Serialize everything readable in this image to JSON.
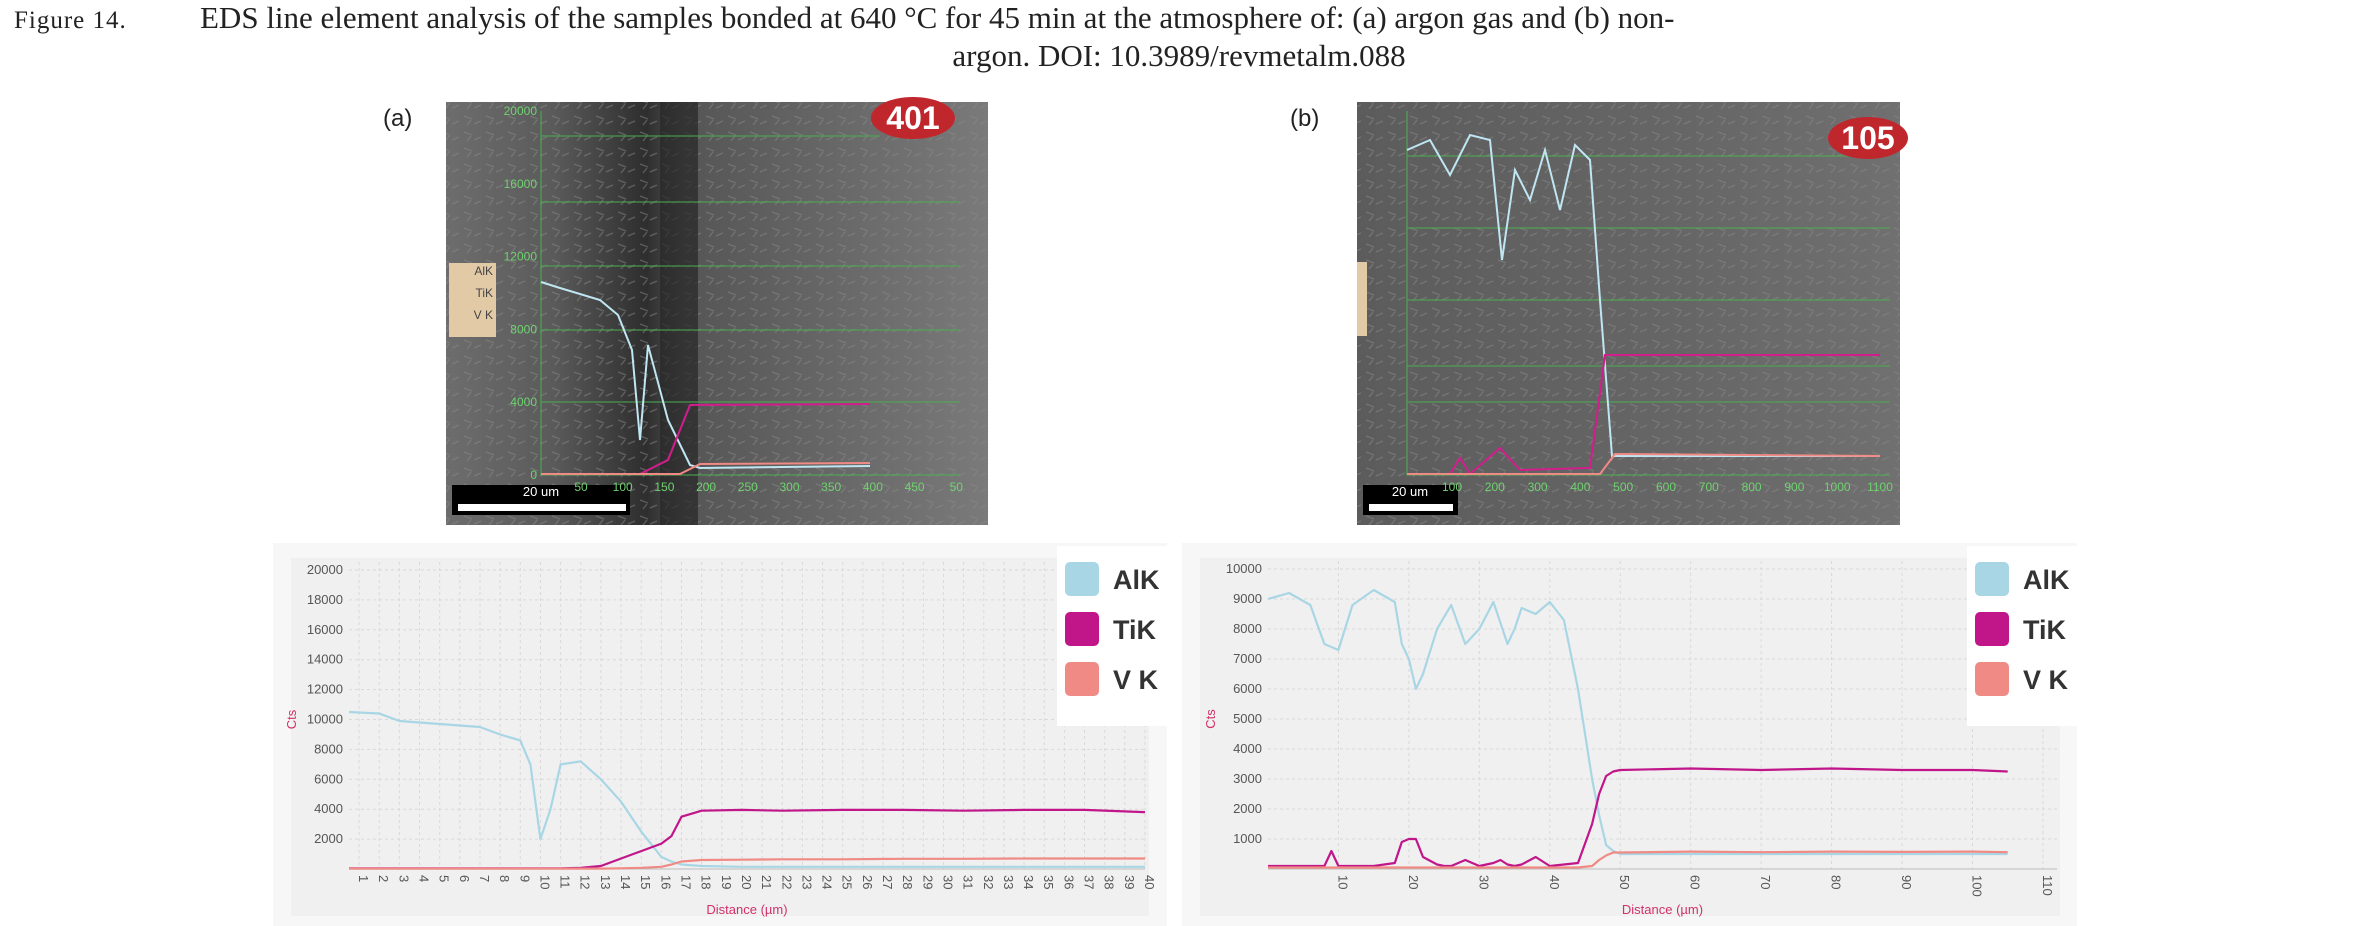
{
  "figure": {
    "caption_label": "Figure 14.",
    "caption_line1": "EDS line element analysis of the samples bonded at 640 °C for 45 min at the atmosphere of: (a) argon gas and (b) non-",
    "caption_line2": "argon. DOI: 10.3989/revmetalm.088",
    "panel_labels": [
      "(a)",
      "(b)"
    ]
  },
  "sem_images": [
    {
      "badge": "401",
      "scale_bar": "20 um",
      "legend": [
        "AlK",
        "TiK",
        "V K"
      ],
      "yticks": [
        "20000",
        "16000",
        "12000",
        "8000",
        "4000",
        "0"
      ],
      "xticks": [
        "50",
        "100",
        "150",
        "200",
        "250",
        "300",
        "350",
        "400",
        "450",
        "50"
      ]
    },
    {
      "badge": "105",
      "scale_bar": "20 um",
      "xticks": [
        "100",
        "200",
        "300",
        "400",
        "500",
        "600",
        "700",
        "800",
        "900",
        "1000",
        "1100"
      ]
    }
  ],
  "chart_data": [
    {
      "type": "line",
      "xlabel": "Distance (µm)",
      "ylabel": "Cts",
      "xlim": [
        0.5,
        40
      ],
      "ylim": [
        0,
        20000
      ],
      "xticks": [
        1,
        2,
        3,
        4,
        5,
        6,
        7,
        8,
        9,
        10,
        11,
        12,
        13,
        14,
        15,
        16,
        17,
        18,
        19,
        20,
        21,
        22,
        23,
        24,
        25,
        26,
        27,
        28,
        29,
        30,
        31,
        32,
        33,
        34,
        35,
        36,
        37,
        38,
        39,
        40
      ],
      "yticks": [
        2000,
        4000,
        6000,
        8000,
        10000,
        12000,
        14000,
        16000,
        18000,
        20000
      ],
      "grid": true,
      "x": [
        0.5,
        2,
        3,
        5,
        7,
        8,
        9,
        9.5,
        10,
        10.5,
        11,
        12,
        13,
        14,
        15,
        16,
        16.5,
        17,
        18,
        20,
        22,
        25,
        28,
        31,
        34,
        37,
        40
      ],
      "series": [
        {
          "name": "AlK",
          "color": "#a9d6e5",
          "values": [
            10500,
            10400,
            9900,
            9700,
            9500,
            9000,
            8600,
            7000,
            2000,
            4000,
            7000,
            7200,
            6000,
            4500,
            2500,
            800,
            500,
            300,
            200,
            150,
            150,
            150,
            150,
            150,
            150,
            150,
            150
          ]
        },
        {
          "name": "TiK",
          "color": "#c0168a",
          "values": [
            50,
            50,
            50,
            50,
            50,
            50,
            50,
            50,
            50,
            50,
            50,
            80,
            200,
            700,
            1200,
            1700,
            2200,
            3500,
            3900,
            3950,
            3900,
            3950,
            3950,
            3900,
            3950,
            3950,
            3800
          ]
        },
        {
          "name": "V K",
          "color": "#f08a84",
          "values": [
            30,
            30,
            30,
            30,
            30,
            30,
            30,
            30,
            30,
            30,
            30,
            30,
            30,
            50,
            80,
            150,
            300,
            500,
            600,
            620,
            650,
            650,
            680,
            680,
            700,
            700,
            700
          ]
        }
      ]
    },
    {
      "type": "line",
      "xlabel": "Distance (µm)",
      "ylabel": "Cts",
      "xlim": [
        0,
        112
      ],
      "ylim": [
        0,
        10000
      ],
      "xticks": [
        10,
        20,
        30,
        40,
        50,
        60,
        70,
        80,
        90,
        100,
        110
      ],
      "yticks": [
        1000,
        2000,
        3000,
        4000,
        5000,
        6000,
        7000,
        8000,
        9000,
        10000
      ],
      "grid": true,
      "x": [
        0,
        3,
        6,
        8,
        9,
        10,
        12,
        15,
        18,
        19,
        20,
        21,
        22,
        24,
        25,
        26,
        28,
        30,
        32,
        33,
        34,
        35,
        36,
        38,
        40,
        42,
        44,
        46,
        47,
        48,
        49,
        50,
        60,
        70,
        80,
        90,
        100,
        105
      ],
      "series": [
        {
          "name": "AlK",
          "color": "#a9d6e5",
          "values": [
            9000,
            9200,
            8800,
            7500,
            7400,
            7300,
            8800,
            9300,
            8900,
            7500,
            7000,
            6000,
            6500,
            8000,
            8400,
            8800,
            7500,
            8000,
            8900,
            8200,
            7500,
            8000,
            8700,
            8500,
            8900,
            8300,
            6000,
            3000,
            1800,
            800,
            600,
            500,
            500,
            500,
            500,
            500,
            500,
            500
          ]
        },
        {
          "name": "TiK",
          "color": "#c0168a",
          "values": [
            100,
            100,
            100,
            100,
            600,
            100,
            100,
            100,
            200,
            900,
            1000,
            1000,
            400,
            150,
            100,
            100,
            300,
            100,
            200,
            300,
            150,
            100,
            150,
            400,
            100,
            150,
            200,
            1500,
            2500,
            3100,
            3250,
            3300,
            3350,
            3300,
            3350,
            3300,
            3300,
            3250
          ]
        },
        {
          "name": "V K",
          "color": "#f08a84",
          "values": [
            50,
            50,
            50,
            50,
            50,
            50,
            50,
            50,
            50,
            50,
            50,
            50,
            50,
            50,
            50,
            50,
            50,
            50,
            50,
            50,
            50,
            50,
            50,
            50,
            50,
            50,
            50,
            100,
            300,
            450,
            550,
            550,
            580,
            560,
            580,
            570,
            580,
            560
          ]
        }
      ]
    }
  ]
}
